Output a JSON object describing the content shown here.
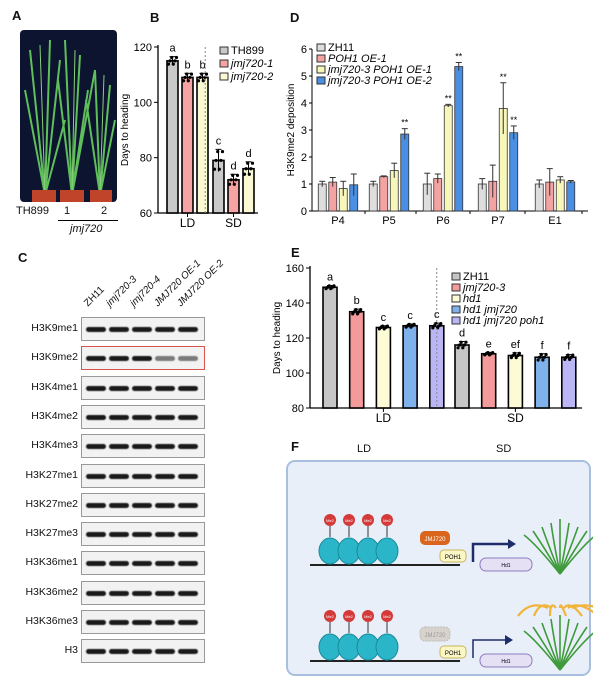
{
  "panels": {
    "a": "A",
    "b": "B",
    "c": "C",
    "d": "D",
    "e": "E",
    "f": "F"
  },
  "panel_a": {
    "labels": [
      "TH899",
      "1",
      "2"
    ],
    "group": "jmj720"
  },
  "panel_c": {
    "columns": [
      "ZH11",
      "jmj720-3",
      "jmj720-4",
      "JMJ720 OE-1",
      "JMJ720 OE-2"
    ],
    "rows": [
      "H3K9me1",
      "H3K9me2",
      "H3K4me1",
      "H3K4me2",
      "H3K4me3",
      "H3K27me1",
      "H3K27me2",
      "H3K27me3",
      "H3K36me1",
      "H3K36me2",
      "H3K36me3",
      "H3"
    ],
    "highlight_row": "H3K9me2",
    "highlight_color": "#d9534f"
  },
  "panel_f": {
    "conditions": [
      "LD",
      "SD"
    ],
    "mark": "Me2",
    "proteins": [
      "JMJ720",
      "POH1"
    ],
    "gene": "Hd1",
    "colors": {
      "box": "#e8eff9",
      "nucleosome": "#2bb5c9",
      "me2": "#d43a3a",
      "jmj720": "#d9661c",
      "poh1": "#fbf6c6",
      "gene": "#e6e0f5",
      "panicle": "#f0b43a",
      "leaf": "#3e9a3a"
    }
  },
  "chart_data": [
    {
      "type": "bar",
      "panel": "B",
      "ylabel": "Days to heading",
      "ylim": [
        60,
        120
      ],
      "yticks": [
        60,
        80,
        100,
        120
      ],
      "categories": [
        "LD",
        "SD"
      ],
      "series": [
        {
          "name": "TH899",
          "color": "#c9c9c9",
          "values": [
            115,
            79
          ],
          "errors": [
            1.5,
            4
          ],
          "letters": [
            "a",
            "c"
          ]
        },
        {
          "name": "jmj720-1",
          "color": "#f6a3a3",
          "values": [
            109,
            72
          ],
          "errors": [
            1.5,
            2
          ],
          "letters": [
            "b",
            "d"
          ]
        },
        {
          "name": "jmj720-2",
          "color": "#fbf8d4",
          "values": [
            109,
            76
          ],
          "errors": [
            1.5,
            2.5
          ],
          "letters": [
            "b",
            "d"
          ]
        }
      ],
      "legend": "top-right"
    },
    {
      "type": "bar",
      "panel": "D",
      "ylabel": "H3K9me2  deposition",
      "ylim": [
        0,
        6
      ],
      "yticks": [
        0,
        1,
        2,
        3,
        4,
        5,
        6
      ],
      "categories": [
        "P4",
        "P5",
        "P6",
        "P7",
        "E1"
      ],
      "series": [
        {
          "name": "ZH11",
          "color": "#dedede",
          "values": [
            1.0,
            1.0,
            1.0,
            1.0,
            1.0
          ],
          "errors": [
            0.1,
            0.1,
            0.4,
            0.2,
            0.15
          ],
          "sig": [
            "",
            "",
            "",
            "",
            ""
          ]
        },
        {
          "name": "POH1 OE-1",
          "color": "#f4a3a3",
          "values": [
            1.07,
            1.27,
            1.2,
            1.1,
            1.07
          ],
          "errors": [
            0.17,
            0.03,
            0.17,
            0.6,
            0.5
          ],
          "sig": [
            "",
            "",
            "",
            "",
            ""
          ]
        },
        {
          "name": "jmj720-3 POH1 OE-1",
          "color": "#f7f7ba",
          "values": [
            0.83,
            1.5,
            3.9,
            3.8,
            1.15
          ],
          "errors": [
            0.27,
            0.27,
            0.05,
            0.95,
            0.12
          ],
          "sig": [
            "",
            "",
            "**",
            "**",
            ""
          ]
        },
        {
          "name": "jmj720-3 POH1 OE-2",
          "color": "#4a8fe3",
          "values": [
            0.97,
            2.85,
            5.35,
            2.9,
            1.08
          ],
          "errors": [
            0.4,
            0.2,
            0.15,
            0.25,
            0.05
          ],
          "sig": [
            "",
            "**",
            "**",
            "**",
            ""
          ]
        }
      ],
      "legend": "top-left"
    },
    {
      "type": "bar",
      "panel": "E",
      "ylabel": "Days to heading",
      "ylim": [
        80,
        160
      ],
      "yticks": [
        80,
        100,
        120,
        140,
        160
      ],
      "categories": [
        "LD",
        "SD"
      ],
      "series": [
        {
          "name": "ZH11",
          "color": "#c6c6c6",
          "values": [
            149,
            116
          ],
          "errors": [
            1,
            2
          ],
          "letters": [
            "a",
            "d"
          ]
        },
        {
          "name": "jmj720-3",
          "color": "#f59a9b",
          "values": [
            135,
            111
          ],
          "errors": [
            1.5,
            0.8
          ],
          "letters": [
            "b",
            "e"
          ]
        },
        {
          "name": "hd1",
          "color": "#fdfbd6",
          "values": [
            126,
            110
          ],
          "errors": [
            1,
            1.5
          ],
          "letters": [
            "c",
            "ef"
          ]
        },
        {
          "name": "hd1 jmj720",
          "color": "#7fb2ea",
          "values": [
            127,
            109
          ],
          "errors": [
            1,
            2
          ],
          "letters": [
            "c",
            "f"
          ]
        },
        {
          "name": "hd1 jmj720 poh1",
          "color": "#bab5f5",
          "values": [
            127,
            109
          ],
          "errors": [
            1.5,
            1.5
          ],
          "letters": [
            "c",
            "f"
          ]
        }
      ],
      "legend": "top-right"
    }
  ]
}
